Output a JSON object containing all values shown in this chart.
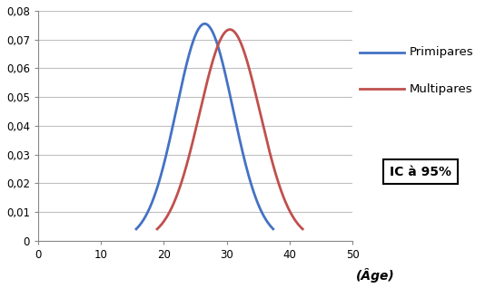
{
  "primiparas_mean": 26.5,
  "primiparas_std": 4.5,
  "primiparas_peak": 0.0755,
  "multiparas_mean": 30.5,
  "multiparas_std": 4.8,
  "multiparas_peak": 0.0735,
  "primiparas_color": "#4472C4",
  "multiparas_color": "#C0504D",
  "xlim": [
    0,
    50
  ],
  "ylim": [
    0,
    0.08
  ],
  "xticks": [
    0,
    10,
    20,
    30,
    40,
    50
  ],
  "yticks": [
    0,
    0.01,
    0.02,
    0.03,
    0.04,
    0.05,
    0.06,
    0.07,
    0.08
  ],
  "xlabel": "(Âge)",
  "primiparas_label": "Primipares",
  "multiparas_label": "Multipares",
  "ic_label": "IC à 95%",
  "line_width": 2.0,
  "background_color": "#ffffff",
  "grid_color": "#c0c0c0",
  "clip_threshold": 0.004
}
